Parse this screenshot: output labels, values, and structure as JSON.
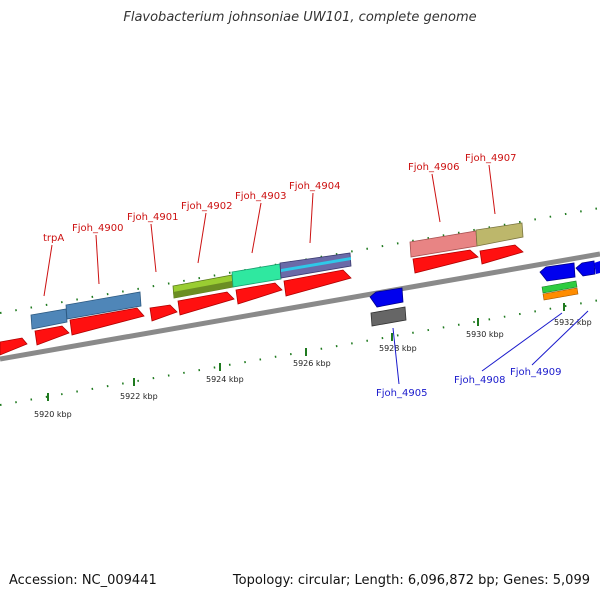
{
  "title": "Flavobacterium johnsoniae UW101, complete genome",
  "accession": "Accession: NC_009441",
  "summary": "Topology: circular; Length: 6,096,872 bp; Genes: 5,099",
  "colors": {
    "backbone": "#8a8a8a",
    "cds": "#ff1010",
    "forward_label": "#cc1111",
    "reverse_label": "#1a1acc",
    "tick": "#1f7a1f"
  },
  "kbp_labels": [
    "5920 kbp",
    "5922 kbp",
    "5924 kbp",
    "5926 kbp",
    "5928 kbp",
    "5930 kbp",
    "5932 kbp"
  ],
  "forward_genes": [
    {
      "name": "trpA",
      "color": "#4f86b8"
    },
    {
      "name": "Fjoh_4900",
      "color": "#4f86b8"
    },
    {
      "name": "Fjoh_4901",
      "color": ""
    },
    {
      "name": "Fjoh_4902",
      "color": "#9acd32"
    },
    {
      "name": "Fjoh_4903",
      "color": "#2fe8a0"
    },
    {
      "name": "Fjoh_4904",
      "color": "#6a6aa8"
    },
    {
      "name": "Fjoh_4906",
      "color": "#e88484"
    },
    {
      "name": "Fjoh_4907",
      "color": "#bdb76b"
    }
  ],
  "reverse_genes": [
    {
      "name": "Fjoh_4905",
      "color": "#0000ee"
    },
    {
      "name": "Fjoh_4908",
      "color": "#0000ee"
    },
    {
      "name": "Fjoh_4909",
      "color": "#0000ee"
    }
  ]
}
